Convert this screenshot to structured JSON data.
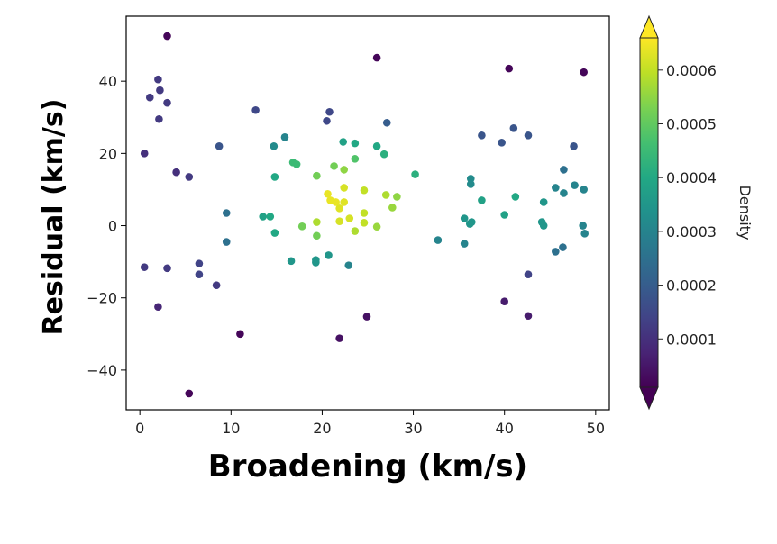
{
  "chart_data": {
    "type": "scatter",
    "xlabel": "Broadening (km/s)",
    "ylabel": "Residual (km/s)",
    "xlim": [
      -1.5,
      51.5
    ],
    "ylim": [
      -51,
      58
    ],
    "xticks": [
      0,
      10,
      20,
      30,
      40,
      50
    ],
    "yticks": [
      -40,
      -20,
      0,
      20,
      40
    ],
    "grid": false,
    "colormap": "viridis",
    "colorbar": {
      "label": "Density",
      "range": [
        1e-05,
        0.00066
      ],
      "ticks": [
        0.0001,
        0.0002,
        0.0003,
        0.0004,
        0.0005,
        0.0006
      ],
      "tick_labels": [
        "0.0001",
        "0.0002",
        "0.0003",
        "0.0004",
        "0.0005",
        "0.0006"
      ],
      "extend": "both"
    },
    "points": [
      {
        "x": 3.0,
        "y": 52.5,
        "c": 2e-05
      },
      {
        "x": 26.0,
        "y": 46.5,
        "c": 2e-05
      },
      {
        "x": 40.5,
        "y": 43.5,
        "c": 2e-05
      },
      {
        "x": 48.7,
        "y": 42.5,
        "c": 2e-05
      },
      {
        "x": 2.0,
        "y": 40.5,
        "c": 0.00012
      },
      {
        "x": 2.2,
        "y": 37.5,
        "c": 0.00012
      },
      {
        "x": 1.1,
        "y": 35.5,
        "c": 0.00012
      },
      {
        "x": 3.0,
        "y": 34.0,
        "c": 0.00012
      },
      {
        "x": 2.1,
        "y": 29.5,
        "c": 0.00012
      },
      {
        "x": 0.5,
        "y": 20.0,
        "c": 0.0001
      },
      {
        "x": 4.0,
        "y": 14.8,
        "c": 0.0001
      },
      {
        "x": 5.4,
        "y": 13.5,
        "c": 0.00012
      },
      {
        "x": 0.5,
        "y": -11.5,
        "c": 0.00012
      },
      {
        "x": 3.0,
        "y": -11.8,
        "c": 0.00012
      },
      {
        "x": 6.5,
        "y": -10.5,
        "c": 0.00014
      },
      {
        "x": 6.5,
        "y": -13.5,
        "c": 0.00014
      },
      {
        "x": 8.4,
        "y": -16.5,
        "c": 0.00012
      },
      {
        "x": 2.0,
        "y": -22.5,
        "c": 8e-05
      },
      {
        "x": 11.0,
        "y": -30.0,
        "c": 2e-05
      },
      {
        "x": 5.4,
        "y": -46.5,
        "c": 2e-05
      },
      {
        "x": 8.7,
        "y": 22.0,
        "c": 0.00018
      },
      {
        "x": 9.5,
        "y": 3.5,
        "c": 0.00025
      },
      {
        "x": 9.5,
        "y": -4.5,
        "c": 0.00025
      },
      {
        "x": 12.7,
        "y": 32.0,
        "c": 0.00015
      },
      {
        "x": 20.8,
        "y": 31.5,
        "c": 0.00015
      },
      {
        "x": 20.5,
        "y": 29.0,
        "c": 0.00015
      },
      {
        "x": 27.1,
        "y": 28.5,
        "c": 0.0002
      },
      {
        "x": 15.9,
        "y": 24.5,
        "c": 0.0003
      },
      {
        "x": 14.7,
        "y": 22.0,
        "c": 0.00032
      },
      {
        "x": 22.3,
        "y": 23.2,
        "c": 0.00038
      },
      {
        "x": 23.6,
        "y": 22.8,
        "c": 0.0004
      },
      {
        "x": 26.0,
        "y": 22.0,
        "c": 0.0004
      },
      {
        "x": 26.8,
        "y": 19.8,
        "c": 0.00042
      },
      {
        "x": 23.6,
        "y": 18.5,
        "c": 0.00048
      },
      {
        "x": 16.8,
        "y": 17.5,
        "c": 0.00045
      },
      {
        "x": 17.2,
        "y": 17.0,
        "c": 0.00045
      },
      {
        "x": 21.3,
        "y": 16.5,
        "c": 0.00052
      },
      {
        "x": 22.4,
        "y": 15.5,
        "c": 0.00055
      },
      {
        "x": 19.4,
        "y": 13.8,
        "c": 0.00052
      },
      {
        "x": 14.8,
        "y": 13.5,
        "c": 0.0004
      },
      {
        "x": 30.2,
        "y": 14.2,
        "c": 0.00042
      },
      {
        "x": 22.4,
        "y": 10.5,
        "c": 0.00062
      },
      {
        "x": 24.6,
        "y": 9.8,
        "c": 0.0006
      },
      {
        "x": 20.6,
        "y": 8.8,
        "c": 0.00064
      },
      {
        "x": 27.0,
        "y": 8.5,
        "c": 0.00058
      },
      {
        "x": 28.2,
        "y": 8.0,
        "c": 0.00055
      },
      {
        "x": 20.9,
        "y": 7.0,
        "c": 0.00064
      },
      {
        "x": 21.5,
        "y": 6.5,
        "c": 0.00064
      },
      {
        "x": 22.4,
        "y": 6.5,
        "c": 0.00063
      },
      {
        "x": 21.9,
        "y": 4.8,
        "c": 0.00063
      },
      {
        "x": 27.7,
        "y": 5.0,
        "c": 0.00056
      },
      {
        "x": 24.6,
        "y": 3.5,
        "c": 0.0006
      },
      {
        "x": 13.5,
        "y": 2.5,
        "c": 0.00038
      },
      {
        "x": 14.3,
        "y": 2.5,
        "c": 0.0004
      },
      {
        "x": 21.9,
        "y": 1.2,
        "c": 0.00062
      },
      {
        "x": 23.0,
        "y": 2.0,
        "c": 0.00062
      },
      {
        "x": 19.4,
        "y": 1.0,
        "c": 0.00058
      },
      {
        "x": 24.6,
        "y": 0.8,
        "c": 0.0006
      },
      {
        "x": 17.8,
        "y": -0.2,
        "c": 0.00052
      },
      {
        "x": 26.0,
        "y": -0.3,
        "c": 0.00056
      },
      {
        "x": 23.6,
        "y": -1.5,
        "c": 0.00058
      },
      {
        "x": 14.8,
        "y": -2.0,
        "c": 0.0004
      },
      {
        "x": 19.4,
        "y": -2.8,
        "c": 0.00052
      },
      {
        "x": 16.6,
        "y": -9.8,
        "c": 0.00035
      },
      {
        "x": 19.3,
        "y": -9.5,
        "c": 0.00035
      },
      {
        "x": 19.3,
        "y": -10.2,
        "c": 0.00035
      },
      {
        "x": 20.7,
        "y": -8.2,
        "c": 0.00035
      },
      {
        "x": 22.9,
        "y": -11.0,
        "c": 0.0003
      },
      {
        "x": 32.7,
        "y": -4.0,
        "c": 0.0003
      },
      {
        "x": 21.9,
        "y": -31.2,
        "c": 4e-05
      },
      {
        "x": 24.9,
        "y": -25.2,
        "c": 4e-05
      },
      {
        "x": 37.5,
        "y": 25.0,
        "c": 0.00018
      },
      {
        "x": 39.7,
        "y": 23.0,
        "c": 0.00018
      },
      {
        "x": 41.0,
        "y": 27.0,
        "c": 0.00018
      },
      {
        "x": 42.6,
        "y": 25.0,
        "c": 0.00018
      },
      {
        "x": 47.6,
        "y": 22.0,
        "c": 0.00018
      },
      {
        "x": 46.5,
        "y": 15.5,
        "c": 0.00025
      },
      {
        "x": 36.3,
        "y": 13.0,
        "c": 0.00032
      },
      {
        "x": 36.3,
        "y": 11.5,
        "c": 0.00032
      },
      {
        "x": 47.7,
        "y": 11.2,
        "c": 0.0003
      },
      {
        "x": 45.6,
        "y": 10.5,
        "c": 0.0003
      },
      {
        "x": 48.7,
        "y": 10.0,
        "c": 0.0003
      },
      {
        "x": 46.5,
        "y": 9.0,
        "c": 0.0003
      },
      {
        "x": 41.2,
        "y": 8.0,
        "c": 0.0004
      },
      {
        "x": 37.5,
        "y": 7.0,
        "c": 0.00038
      },
      {
        "x": 44.3,
        "y": 6.5,
        "c": 0.00035
      },
      {
        "x": 40.0,
        "y": 3.0,
        "c": 0.00038
      },
      {
        "x": 35.6,
        "y": 2.0,
        "c": 0.00035
      },
      {
        "x": 36.4,
        "y": 1.0,
        "c": 0.00035
      },
      {
        "x": 36.2,
        "y": 0.5,
        "c": 0.00035
      },
      {
        "x": 44.1,
        "y": 1.0,
        "c": 0.00035
      },
      {
        "x": 44.3,
        "y": 0.0,
        "c": 0.00035
      },
      {
        "x": 48.6,
        "y": 0.0,
        "c": 0.0003
      },
      {
        "x": 48.8,
        "y": -2.2,
        "c": 0.0003
      },
      {
        "x": 35.6,
        "y": -5.0,
        "c": 0.0003
      },
      {
        "x": 46.4,
        "y": -6.0,
        "c": 0.00025
      },
      {
        "x": 45.6,
        "y": -7.2,
        "c": 0.00025
      },
      {
        "x": 42.6,
        "y": -13.5,
        "c": 0.00014
      },
      {
        "x": 40.0,
        "y": -21.0,
        "c": 6e-05
      },
      {
        "x": 42.6,
        "y": -25.0,
        "c": 6e-05
      }
    ]
  }
}
